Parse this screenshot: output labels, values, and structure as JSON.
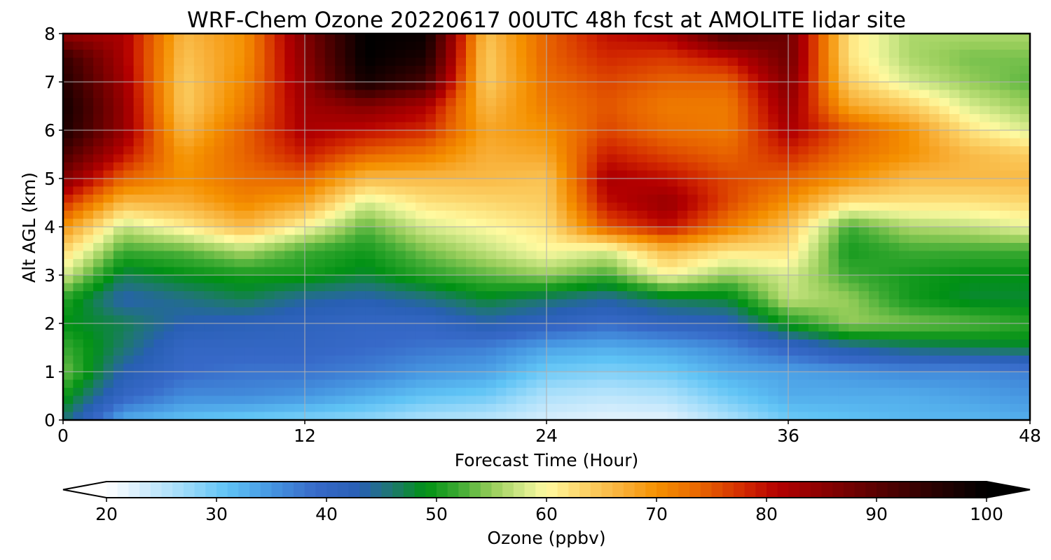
{
  "chart_data": {
    "type": "heatmap",
    "title": "WRF-Chem Ozone  20220617 00UTC 48h fcst at AMOLITE lidar site",
    "xlabel": "Forecast Time (Hour)",
    "ylabel": "Alt AGL (km)",
    "xlim": [
      0,
      48
    ],
    "ylim": [
      0,
      8
    ],
    "xticks": [
      "0",
      "12",
      "24",
      "36",
      "48"
    ],
    "yticks": [
      "0",
      "1",
      "2",
      "3",
      "4",
      "5",
      "6",
      "7",
      "8"
    ],
    "grid": true,
    "x": [
      0,
      3,
      6,
      9,
      12,
      15,
      18,
      21,
      24,
      27,
      30,
      33,
      36,
      39,
      42,
      45,
      48
    ],
    "y": [
      0,
      0.5,
      1,
      1.5,
      2,
      2.5,
      3,
      3.5,
      4,
      4.5,
      5,
      5.5,
      6,
      6.5,
      7,
      7.5,
      8
    ],
    "values": [
      [
        46,
        33,
        31,
        30,
        29,
        28,
        26,
        25,
        23,
        22,
        22,
        26,
        30,
        31,
        32,
        32,
        33
      ],
      [
        50,
        40,
        36,
        36,
        35,
        33,
        31,
        30,
        26,
        25,
        26,
        30,
        33,
        33,
        33,
        34,
        35
      ],
      [
        54,
        43,
        39,
        38,
        38,
        37,
        35,
        34,
        30,
        29,
        30,
        33,
        34,
        35,
        36,
        36,
        37
      ],
      [
        52,
        46,
        40,
        40,
        40,
        39,
        38,
        37,
        34,
        33,
        34,
        36,
        40,
        44,
        46,
        47,
        48
      ],
      [
        49,
        47,
        43,
        42,
        41,
        40,
        40,
        43,
        41,
        39,
        41,
        42,
        50,
        55,
        54,
        53,
        51
      ],
      [
        51,
        43,
        45,
        47,
        44,
        43,
        45,
        48,
        46,
        44,
        47,
        48,
        57,
        55,
        50,
        48,
        48
      ],
      [
        58,
        47,
        49,
        50,
        50,
        48,
        51,
        53,
        55,
        52,
        60,
        55,
        58,
        52,
        50,
        49,
        49
      ],
      [
        63,
        52,
        53,
        56,
        52,
        50,
        54,
        57,
        60,
        58,
        66,
        62,
        62,
        50,
        52,
        52,
        52
      ],
      [
        70,
        57,
        61,
        66,
        60,
        53,
        58,
        60,
        62,
        75,
        80,
        72,
        65,
        52,
        56,
        57,
        59
      ],
      [
        78,
        66,
        67,
        71,
        68,
        58,
        62,
        63,
        64,
        80,
        84,
        76,
        70,
        62,
        62,
        62,
        63
      ],
      [
        86,
        74,
        70,
        73,
        74,
        66,
        66,
        66,
        65,
        82,
        80,
        76,
        74,
        70,
        66,
        66,
        66
      ],
      [
        92,
        80,
        69,
        74,
        79,
        74,
        72,
        67,
        68,
        79,
        76,
        74,
        78,
        73,
        70,
        66,
        64
      ],
      [
        97,
        84,
        66,
        74,
        82,
        80,
        78,
        68,
        70,
        76,
        73,
        72,
        82,
        75,
        70,
        62,
        58
      ],
      [
        98,
        84,
        64,
        72,
        83,
        86,
        82,
        66,
        72,
        75,
        72,
        72,
        84,
        68,
        64,
        58,
        55
      ],
      [
        96,
        83,
        64,
        71,
        84,
        98,
        92,
        64,
        73,
        76,
        74,
        74,
        86,
        64,
        58,
        55,
        53
      ],
      [
        94,
        82,
        65,
        70,
        85,
        100,
        97,
        64,
        74,
        78,
        77,
        80,
        88,
        62,
        56,
        54,
        54
      ],
      [
        84,
        82,
        66,
        70,
        86,
        100,
        99,
        65,
        74,
        80,
        82,
        92,
        88,
        62,
        56,
        56,
        56
      ]
    ],
    "colorbar": {
      "label": "Ozone  (ppbv)",
      "ticks": [
        "20",
        "30",
        "40",
        "50",
        "60",
        "70",
        "80",
        "90",
        "100"
      ],
      "min": 20,
      "max": 100,
      "extend": "both"
    }
  }
}
